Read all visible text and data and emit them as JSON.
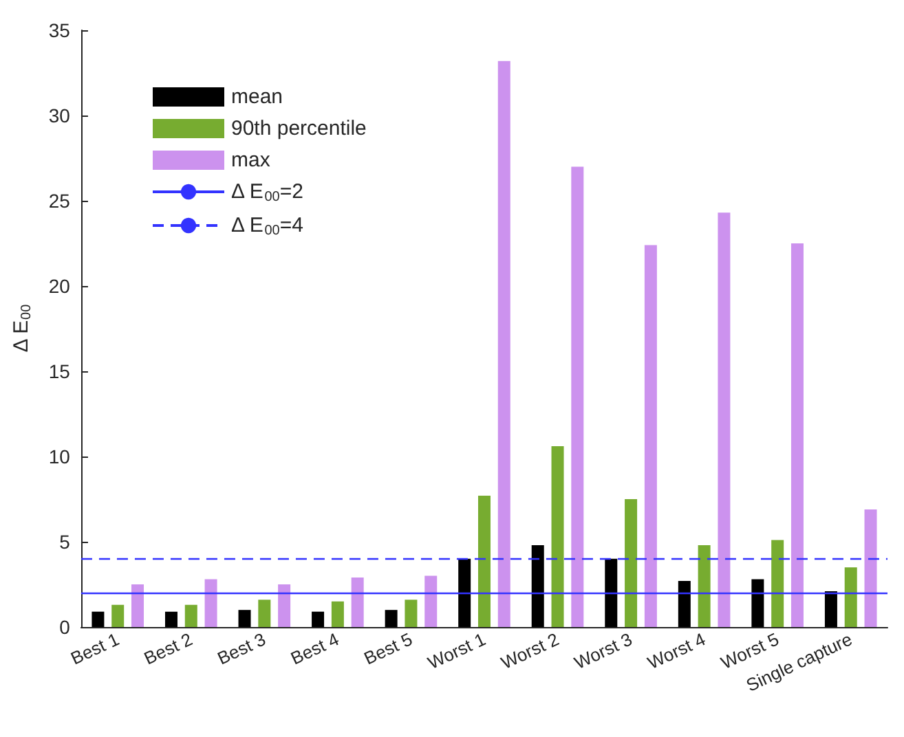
{
  "chart_data": {
    "type": "bar",
    "ylabel": "Δ E$_{00}$",
    "categories": [
      "Best 1",
      "Best 2",
      "Best 3",
      "Best 4",
      "Best 5",
      "Worst 1",
      "Worst 2",
      "Worst 3",
      "Worst 4",
      "Worst 5",
      "Single capture"
    ],
    "series": [
      {
        "name": "mean",
        "color": "#000000",
        "values": [
          0.9,
          0.9,
          1.0,
          0.9,
          1.0,
          4.0,
          4.8,
          4.0,
          2.7,
          2.8,
          2.1
        ]
      },
      {
        "name": "90th percentile",
        "color": "#77ac30",
        "values": [
          1.3,
          1.3,
          1.6,
          1.5,
          1.6,
          7.7,
          10.6,
          7.5,
          4.8,
          5.1,
          3.5
        ]
      },
      {
        "name": "max",
        "color": "#cc92ee",
        "values": [
          2.5,
          2.8,
          2.5,
          2.9,
          3.0,
          33.2,
          27.0,
          22.4,
          24.3,
          22.5,
          6.9
        ]
      }
    ],
    "ref_lines": [
      {
        "axis": "y",
        "value": 2,
        "label": "Δ E$_{00}$=2",
        "color": "#3333ff",
        "line_style": "solid"
      },
      {
        "axis": "y",
        "value": 4,
        "label": "Δ E$_{00}$=4",
        "color": "#3333ff",
        "line_style": "dashed"
      }
    ],
    "ylim": [
      0,
      35
    ],
    "yticks": [
      0,
      5,
      10,
      15,
      20,
      25,
      30,
      35
    ],
    "grid": false,
    "legend": "top left"
  }
}
